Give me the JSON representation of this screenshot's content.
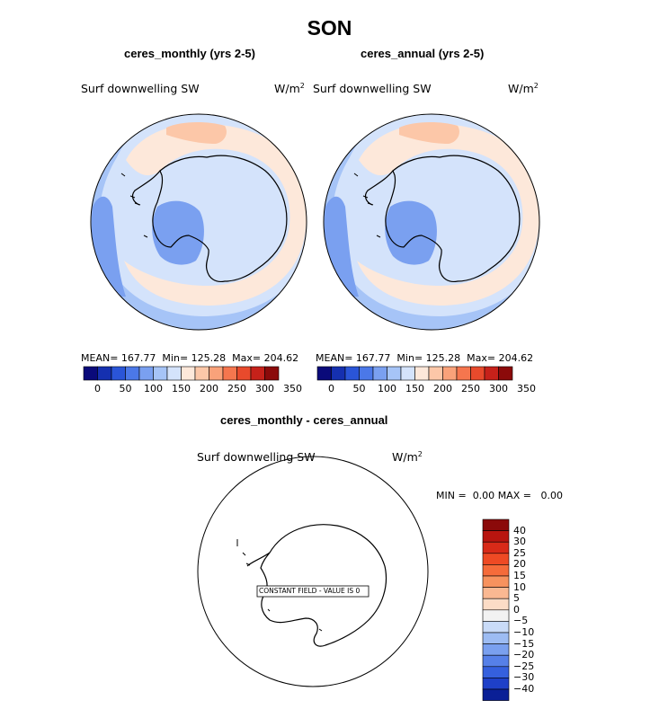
{
  "page": {
    "title": "SON"
  },
  "panels": [
    {
      "subtitle": "ceres_monthly (yrs 2-5)",
      "variable": "Surf downwelling SW",
      "units_base": "W/m",
      "units_exp": "2",
      "stats": {
        "mean_label": "MEAN=",
        "mean": "167.77",
        "min_label": "Min=",
        "min": "125.28",
        "max_label": "Max=",
        "max": "204.62"
      }
    },
    {
      "subtitle": "ceres_annual (yrs 2-5)",
      "variable": "Surf downwelling SW",
      "units_base": "W/m",
      "units_exp": "2",
      "stats": {
        "mean_label": "MEAN=",
        "mean": "167.77",
        "min_label": "Min=",
        "min": "125.28",
        "max_label": "Max=",
        "max": "204.62"
      }
    }
  ],
  "colorbar_top": {
    "tick_labels": [
      "0",
      "50",
      "100",
      "150",
      "200",
      "250",
      "300",
      "350"
    ],
    "colors": [
      "#0a0a7a",
      "#1530b0",
      "#2a55d8",
      "#4b78e8",
      "#7aa0f0",
      "#a6c4f7",
      "#d4e3fb",
      "#fde8da",
      "#fcc7a8",
      "#f9a27a",
      "#f5764e",
      "#e84a2c",
      "#c6211a",
      "#8b0a0a"
    ]
  },
  "diff_panel": {
    "subtitle": "ceres_monthly - ceres_annual",
    "variable": "Surf downwelling SW",
    "units_base": "W/m",
    "units_exp": "2",
    "min_label": "MIN =",
    "min": "0.00",
    "max_label": "MAX =",
    "max": "0.00",
    "constant_field": "CONSTANT FIELD - VALUE IS 0"
  },
  "colorbar_right": {
    "labels": [
      "40",
      "30",
      "25",
      "20",
      "15",
      "10",
      "5",
      "0",
      "−5",
      "−10",
      "−15",
      "−20",
      "−25",
      "−30",
      "−40"
    ],
    "colors": [
      "#8b0a0a",
      "#b8150f",
      "#d82a18",
      "#ee4a24",
      "#f56b3a",
      "#f7925e",
      "#fab892",
      "#fcdcc6",
      "#f2f2f2",
      "#c9dbf8",
      "#9dbcf3",
      "#7aa0ef",
      "#5680e8",
      "#3560de",
      "#1e40c8",
      "#0a1f96"
    ]
  },
  "map_colors": {
    "ocean_mid": "#a6c4f7",
    "ocean_light": "#d4e3fb",
    "ocean_dark": "#7aa0f0",
    "warm_light": "#fde8da",
    "warm_mid": "#fcc7a8"
  }
}
